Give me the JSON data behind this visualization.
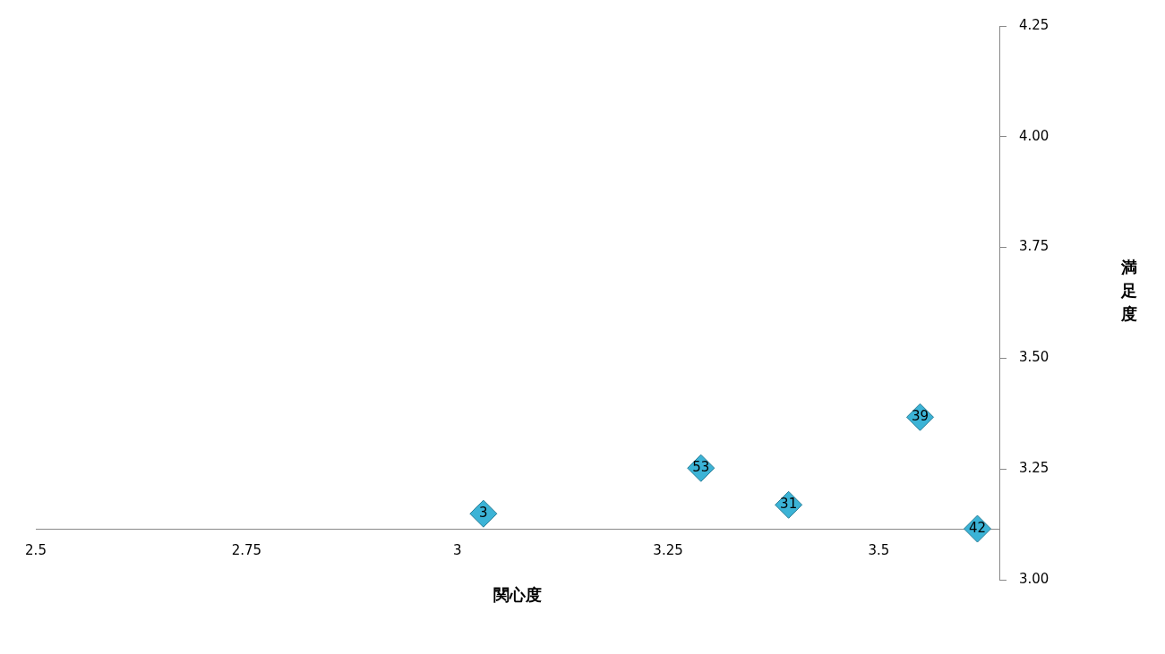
{
  "chart_data": {
    "type": "scatter",
    "xlabel": "関心度",
    "ylabel": "満足度",
    "x": [
      3.031,
      3.289,
      3.393,
      3.549,
      3.617
    ],
    "series": [
      {
        "color": "#3bb3d6",
        "values": [
          3.149,
          3.252,
          3.169,
          3.367,
          3.115
        ]
      }
    ],
    "annotations": [
      {
        "text": "3",
        "x": 3.031,
        "y": 3.149
      },
      {
        "text": "53",
        "x": 3.289,
        "y": 3.252
      },
      {
        "text": "31",
        "x": 3.393,
        "y": 3.169
      },
      {
        "text": "39",
        "x": 3.549,
        "y": 3.367
      },
      {
        "text": "42",
        "x": 3.617,
        "y": 3.115
      }
    ],
    "xlim": [
      2.5,
      3.643
    ],
    "ylim": [
      3.0,
      4.25
    ],
    "xticks": [
      2.5,
      2.75,
      3,
      3.25,
      3.5
    ],
    "yticks": [
      {
        "value": 3.0,
        "label": "3.00"
      },
      {
        "value": 3.25,
        "label": "3.25"
      },
      {
        "value": 3.5,
        "label": "3.50"
      },
      {
        "value": 3.75,
        "label": "3.75"
      },
      {
        "value": 4.0,
        "label": "4.00"
      },
      {
        "value": 4.25,
        "label": "4.25"
      }
    ],
    "marker": "diamond",
    "grid": false,
    "legend": false
  }
}
